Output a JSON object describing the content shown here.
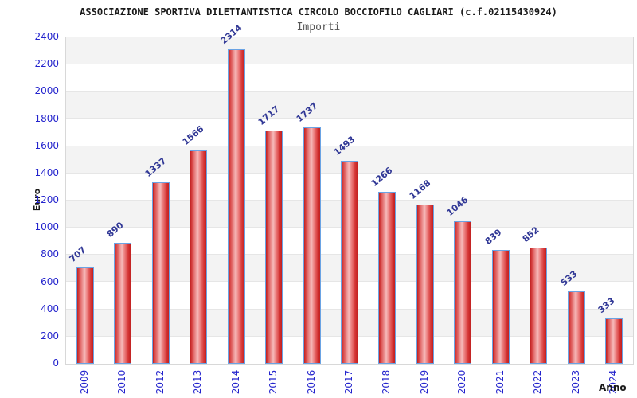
{
  "header": {
    "title": "ASSOCIAZIONE SPORTIVA DILETTANTISTICA CIRCOLO BOCCIOFILO CAGLIARI (c.f.02115430924)",
    "subtitle": "Importi"
  },
  "chart_data": {
    "type": "bar",
    "title": "ASSOCIAZIONE SPORTIVA DILETTANTISTICA CIRCOLO BOCCIOFILO CAGLIARI (c.f.02115430924)",
    "subtitle": "Importi",
    "xlabel": "Anno",
    "ylabel": "Euro",
    "categories": [
      "2009",
      "2010",
      "2012",
      "2013",
      "2014",
      "2015",
      "2016",
      "2017",
      "2018",
      "2019",
      "2020",
      "2021",
      "2022",
      "2023",
      "2024"
    ],
    "values": [
      707,
      890,
      1337,
      1566,
      2314,
      1717,
      1737,
      1493,
      1266,
      1168,
      1046,
      839,
      852,
      533,
      333
    ],
    "ylim": [
      0,
      2400
    ],
    "ytick_step": 200,
    "ytick_labels": [
      "0",
      "200",
      "400",
      "600",
      "800",
      "1000",
      "1200",
      "1400",
      "1600",
      "1800",
      "2000",
      "2200",
      "2400"
    ],
    "legend": "none",
    "grid": "horizontal-bands-alternating",
    "colors": {
      "bar_fill_edge": "#c02020",
      "bar_fill_highlight": "#f6baba",
      "bar_border": "#6aa3e4",
      "tick_label": "#2424cd",
      "value_label": "#313896",
      "band_gray": "#f3f3f3",
      "band_white": "#ffffff",
      "gridline": "#e6e6e6",
      "plot_border": "#d8d8d8",
      "title_color": "#1a1a1a",
      "subtitle_color": "#555555"
    }
  }
}
